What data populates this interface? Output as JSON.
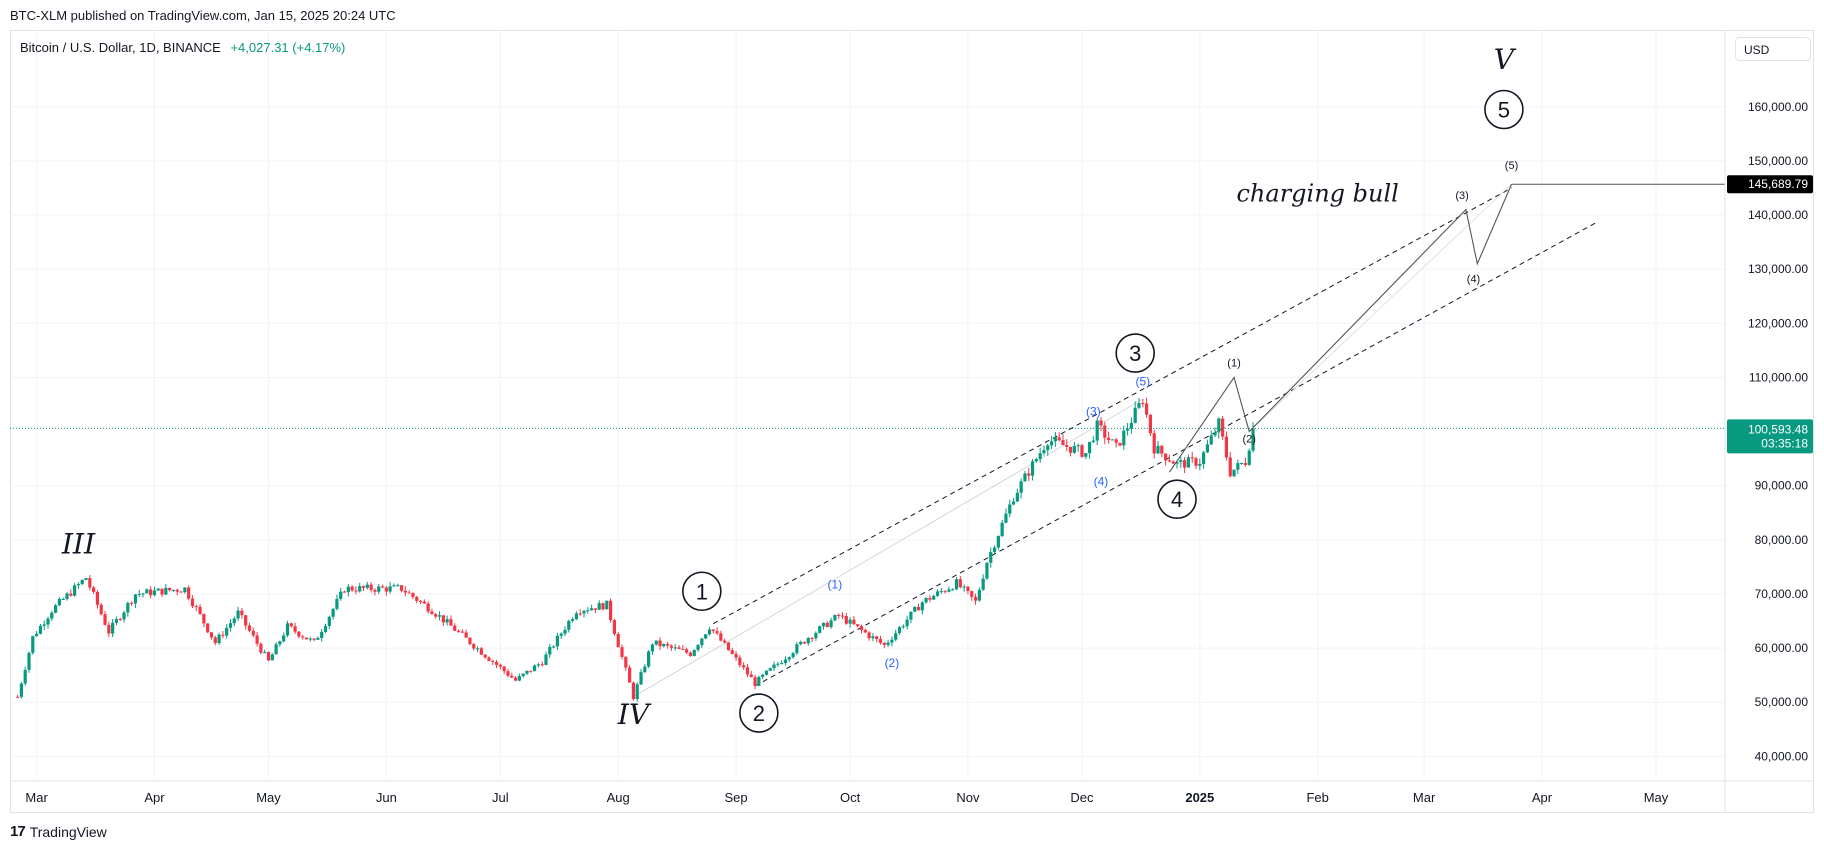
{
  "header": {
    "published": "BTC-XLM published on TradingView.com, Jan 15, 2025 20:24 UTC"
  },
  "legend": {
    "symbol": "Bitcoin / U.S. Dollar, 1D, BINANCE",
    "change": "+4,027.31 (+4.17%)"
  },
  "toolbar": {
    "currency": "USD"
  },
  "footer": {
    "brand": "TradingView",
    "brand_mark": "17"
  },
  "colors": {
    "up": "#089981",
    "down": "#f23645",
    "blue_label": "#2962ff",
    "grid": "#f0f3fa"
  },
  "chart_data": {
    "type": "candlestick",
    "ylim": [
      36000,
      174000
    ],
    "y_ticks": [
      {
        "v": 160000,
        "label": "160,000.00"
      },
      {
        "v": 150000,
        "label": "150,000.00"
      },
      {
        "v": 140000,
        "label": "140,000.00"
      },
      {
        "v": 130000,
        "label": "130,000.00"
      },
      {
        "v": 120000,
        "label": "120,000.00"
      },
      {
        "v": 110000,
        "label": "110,000.00"
      },
      {
        "v": 90000,
        "label": "90,000.00"
      },
      {
        "v": 80000,
        "label": "80,000.00"
      },
      {
        "v": 70000,
        "label": "70,000.00"
      },
      {
        "v": 60000,
        "label": "60,000.00"
      },
      {
        "v": 50000,
        "label": "50,000.00"
      },
      {
        "v": 40000,
        "label": "40,000.00"
      }
    ],
    "x_ticks": [
      {
        "d": "2024-03-01",
        "label": "Mar"
      },
      {
        "d": "2024-04-01",
        "label": "Apr"
      },
      {
        "d": "2024-05-01",
        "label": "May"
      },
      {
        "d": "2024-06-01",
        "label": "Jun"
      },
      {
        "d": "2024-07-01",
        "label": "Jul"
      },
      {
        "d": "2024-08-01",
        "label": "Aug"
      },
      {
        "d": "2024-09-01",
        "label": "Sep"
      },
      {
        "d": "2024-10-01",
        "label": "Oct"
      },
      {
        "d": "2024-11-01",
        "label": "Nov"
      },
      {
        "d": "2024-12-01",
        "label": "Dec"
      },
      {
        "d": "2025-01-01",
        "label": "2025",
        "bold": true
      },
      {
        "d": "2025-02-01",
        "label": "Feb"
      },
      {
        "d": "2025-03-01",
        "label": "Mar"
      },
      {
        "d": "2025-04-01",
        "label": "Apr"
      },
      {
        "d": "2025-05-01",
        "label": "May"
      }
    ],
    "price_path": [
      [
        "2024-02-25",
        51000
      ],
      [
        "2024-02-29",
        62000
      ],
      [
        "2024-03-05",
        67000
      ],
      [
        "2024-03-14",
        73000
      ],
      [
        "2024-03-20",
        63000
      ],
      [
        "2024-03-27",
        70000
      ],
      [
        "2024-04-09",
        71000
      ],
      [
        "2024-04-17",
        61000
      ],
      [
        "2024-04-23",
        66500
      ],
      [
        "2024-05-01",
        57500
      ],
      [
        "2024-05-06",
        64000
      ],
      [
        "2024-05-13",
        61000
      ],
      [
        "2024-05-21",
        71000
      ],
      [
        "2024-06-05",
        71000
      ],
      [
        "2024-06-13",
        67000
      ],
      [
        "2024-06-24",
        60500
      ],
      [
        "2024-07-05",
        54000
      ],
      [
        "2024-07-12",
        57500
      ],
      [
        "2024-07-21",
        67000
      ],
      [
        "2024-07-29",
        68000
      ],
      [
        "2024-08-05",
        51000
      ],
      [
        "2024-08-10",
        61000
      ],
      [
        "2024-08-20",
        59000
      ],
      [
        "2024-08-25",
        64000
      ],
      [
        "2024-09-06",
        53500
      ],
      [
        "2024-09-20",
        62000
      ],
      [
        "2024-09-28",
        66000
      ],
      [
        "2024-10-10",
        60500
      ],
      [
        "2024-10-20",
        68500
      ],
      [
        "2024-10-29",
        72000
      ],
      [
        "2024-11-03",
        68500
      ],
      [
        "2024-11-06",
        76000
      ],
      [
        "2024-11-13",
        88000
      ],
      [
        "2024-11-22",
        98500
      ],
      [
        "2024-12-02",
        96000
      ],
      [
        "2024-12-05",
        101000
      ],
      [
        "2024-12-10",
        97000
      ],
      [
        "2024-12-17",
        106000
      ],
      [
        "2024-12-20",
        97000
      ],
      [
        "2024-12-26",
        94000
      ],
      [
        "2025-01-01",
        94500
      ],
      [
        "2025-01-06",
        101500
      ],
      [
        "2025-01-09",
        92500
      ],
      [
        "2025-01-13",
        94500
      ],
      [
        "2025-01-15",
        100500
      ]
    ],
    "last_price": {
      "v": 100593.48,
      "label": "100,593.48",
      "countdown": "03:35:18"
    },
    "target_price": {
      "v": 145689.79,
      "label": "145,689.79"
    },
    "channel": {
      "upper": [
        [
          "2024-08-26",
          64500
        ],
        [
          "2025-03-24",
          145000
        ]
      ],
      "lower": [
        [
          "2024-09-06",
          53000
        ],
        [
          "2025-04-15",
          138500
        ]
      ]
    },
    "projection": [
      [
        "2024-12-24",
        92500
      ],
      [
        "2025-01-10",
        110000
      ],
      [
        "2025-01-14",
        100000
      ],
      [
        "2025-03-12",
        141000
      ],
      [
        "2025-03-15",
        131000
      ],
      [
        "2025-03-24",
        145689.79
      ]
    ],
    "wave_labels": {
      "primary": [
        {
          "label": "III",
          "d": "2024-03-12",
          "v": 77500,
          "style": "roman"
        },
        {
          "label": "IV",
          "d": "2024-08-05",
          "v": 46000,
          "style": "roman"
        },
        {
          "label": "V",
          "d": "2025-03-22",
          "v": 167000,
          "style": "roman"
        }
      ],
      "circled": [
        {
          "label": "1",
          "d": "2024-08-23",
          "v": 70500
        },
        {
          "label": "2",
          "d": "2024-09-07",
          "v": 48000
        },
        {
          "label": "3",
          "d": "2024-12-15",
          "v": 114500
        },
        {
          "label": "4",
          "d": "2024-12-26",
          "v": 87500
        },
        {
          "label": "5",
          "d": "2025-03-22",
          "v": 159500
        }
      ],
      "minor_blue": [
        {
          "label": "(1)",
          "d": "2024-09-27",
          "v": 71000
        },
        {
          "label": "(2)",
          "d": "2024-10-12",
          "v": 56500
        },
        {
          "label": "(3)",
          "d": "2024-12-04",
          "v": 103000
        },
        {
          "label": "(4)",
          "d": "2024-12-06",
          "v": 90000
        },
        {
          "label": "(5)",
          "d": "2024-12-17",
          "v": 108500
        }
      ],
      "minor_black": [
        {
          "label": "(1)",
          "d": "2025-01-10",
          "v": 112000
        },
        {
          "label": "(2)",
          "d": "2025-01-14",
          "v": 98000
        },
        {
          "label": "(3)",
          "d": "2025-03-11",
          "v": 143000
        },
        {
          "label": "(4)",
          "d": "2025-03-14",
          "v": 127500
        },
        {
          "label": "(5)",
          "d": "2025-03-24",
          "v": 148500
        }
      ]
    },
    "annotation": {
      "text": "charging bull",
      "d": "2025-02-01",
      "v": 142500
    }
  }
}
